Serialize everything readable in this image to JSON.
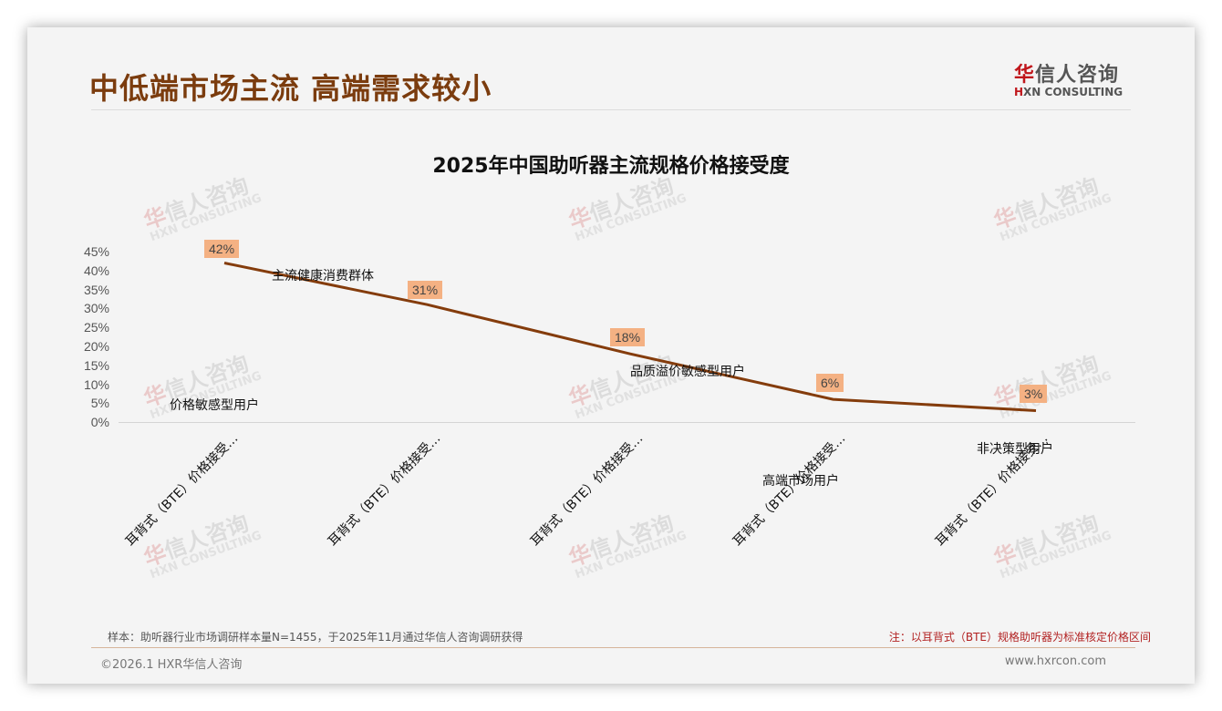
{
  "header": {
    "page_title": "中低端市场主流 高端需求较小",
    "logo": {
      "cn_red": "华",
      "cn_rest": "信人咨询",
      "en_red": "H",
      "en_rest": "XN CONSULTING"
    }
  },
  "watermark": {
    "cn_red": "华",
    "cn_rest": "信人咨询",
    "en": "HXN CONSULTING"
  },
  "chart_data": {
    "type": "line",
    "title": "2025年中国助听器主流规格价格接受度",
    "categories": [
      "耳背式（BTE）价格接受…",
      "耳背式（BTE）价格接受…",
      "耳背式（BTE）价格接受…",
      "耳背式（BTE）价格接受…",
      "耳背式（BTE）价格接受…"
    ],
    "series": [
      {
        "name": "价格接受度",
        "values": [
          42,
          31,
          18,
          6,
          3
        ],
        "color": "#843c0c"
      }
    ],
    "data_labels": [
      "42%",
      "31%",
      "18%",
      "6%",
      "3%"
    ],
    "annotations": [
      "价格敏感型用户",
      "主流健康消费群体",
      "品质溢价敏感型用户",
      "高端市场用户",
      "非决策型用户"
    ],
    "yticks": [
      "45%",
      "40%",
      "35%",
      "30%",
      "25%",
      "20%",
      "15%",
      "10%",
      "5%",
      "0%"
    ],
    "ylim": [
      0,
      45
    ],
    "xlabel": "",
    "ylabel": "",
    "grid": false,
    "legend": "none",
    "label_bg_color": "#f4b183"
  },
  "footer": {
    "source": "样本：助听器行业市场调研样本量N=1455，于2025年11月通过华信人咨询调研获得",
    "note": "注：以耳背式（BTE）规格助听器为标准核定价格区间",
    "copyright": "©2026.1 HXR华信人咨询",
    "website": "www.hxrcon.com"
  }
}
